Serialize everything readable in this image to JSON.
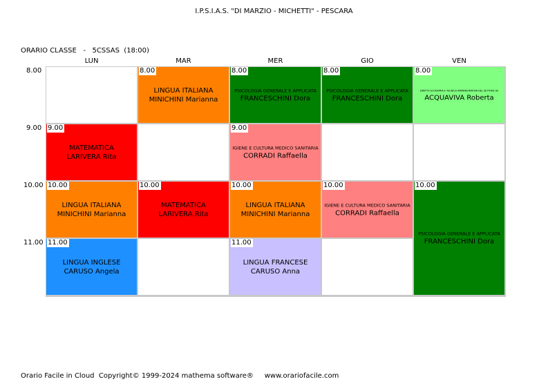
{
  "header": {
    "school": "I.P.S.I.A.S. \"DI MARZIO - MICHETTI\" - PESCARA",
    "class_label": "ORARIO CLASSE   -   5CSSAS  (18:00)"
  },
  "days": [
    "LUN",
    "MAR",
    "MER",
    "GIO",
    "VEN"
  ],
  "times": [
    "8.00",
    "9.00",
    "10.00",
    "11.00"
  ],
  "colors": {
    "green": "#008000",
    "light_green": "#80ff80",
    "red": "#ff0000",
    "orange": "#ff8000",
    "pink": "#ff8080",
    "blue": "#1e90ff",
    "lavender": "#c8c0ff",
    "white": "#ffffff"
  },
  "lessons": [
    {
      "day": "LUN",
      "time": "9.00",
      "subject": "MATEMATICA",
      "teacher": "LARIVERA Rita",
      "color": "red"
    },
    {
      "day": "LUN",
      "time": "10.00",
      "subject": "LINGUA ITALIANA",
      "teacher": "MINICHINI Marianna",
      "color": "orange"
    },
    {
      "day": "LUN",
      "time": "11.00",
      "subject": "LINGUA INGLESE",
      "teacher": "CARUSO Angela",
      "color": "blue"
    },
    {
      "day": "MAR",
      "time": "8.00",
      "subject": "LINGUA ITALIANA",
      "teacher": "MINICHINI Marianna",
      "color": "orange"
    },
    {
      "day": "MAR",
      "time": "10.00",
      "subject": "MATEMATICA",
      "teacher": "LARIVERA Rita",
      "color": "red"
    },
    {
      "day": "MER",
      "time": "8.00",
      "subject": "PSICOLOGIA GENERALE E APPLICATA",
      "teacher": "FRANCESCHINI Dora",
      "color": "green"
    },
    {
      "day": "MER",
      "time": "9.00",
      "subject": "IGIENE E CULTURA MEDICO SANITARIA",
      "teacher": "CORRADI Raffaella",
      "color": "pink"
    },
    {
      "day": "MER",
      "time": "10.00",
      "subject": "LINGUA ITALIANA",
      "teacher": "MINICHINI Marianna",
      "color": "orange"
    },
    {
      "day": "MER",
      "time": "11.00",
      "subject": "LINGUA FRANCESE",
      "teacher": "CARUSO Anna",
      "color": "lavender"
    },
    {
      "day": "GIO",
      "time": "8.00",
      "subject": "PSICOLOGIA GENERALE E APPLICATA",
      "teacher": "FRANCESCHINI Dora",
      "color": "green"
    },
    {
      "day": "GIO",
      "time": "10.00",
      "subject": "IGIENE E CULTURA MEDICO SANITARIA",
      "teacher": "CORRADI Raffaella",
      "color": "pink"
    },
    {
      "day": "VEN",
      "time": "8.00",
      "subject": "DIRITTO ECONOMIA E TECNICA AMMINISTRATIVA DEL SETTORE SS",
      "teacher": "ACQUAVIVA Roberta",
      "color": "light_green"
    },
    {
      "day": "VEN",
      "time": "10.00",
      "subject": "PSICOLOGIA GENERALE E APPLICATA",
      "teacher": "FRANCESCHINI Dora",
      "color": "green"
    },
    {
      "day": "VEN",
      "time": "11.00",
      "subject": "PSICOLOGIA GENERALE E APPLICATA",
      "teacher": "FRANCESCHINI Dora",
      "color": "green"
    }
  ],
  "footer": "Orario Facile in Cloud  Copyright© 1999-2024 mathema software®     www.orariofacile.com"
}
